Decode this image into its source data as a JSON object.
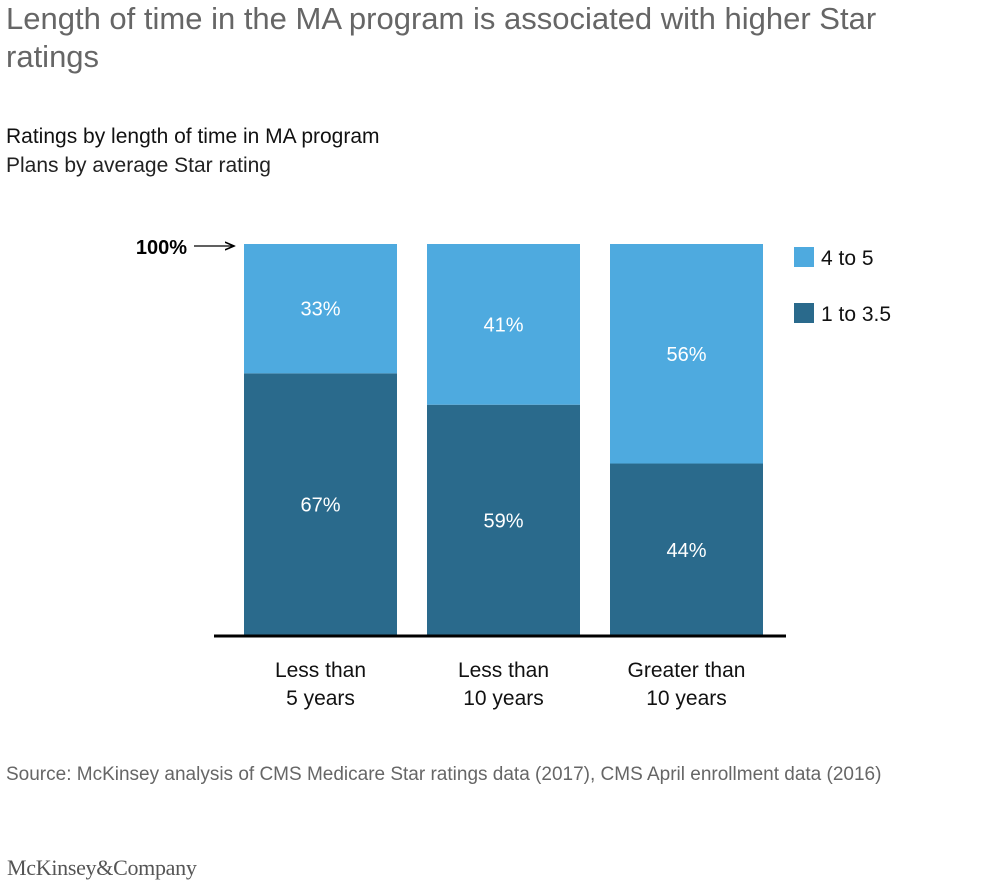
{
  "headline": "Length of time in the MA program is associated with higher Star ratings",
  "chart_data": {
    "type": "bar",
    "stacked": true,
    "title": "Ratings by length of time in MA program",
    "subtitle": "Plans by average Star rating",
    "categories": [
      [
        "Less than",
        "5 years"
      ],
      [
        "Less than",
        "10 years"
      ],
      [
        "Greater than",
        "10 years"
      ]
    ],
    "series": [
      {
        "name": "1 to 3.5",
        "color": "#2a6a8c",
        "values": [
          67,
          59,
          44
        ],
        "labels": [
          "67%",
          "59%",
          "44%"
        ]
      },
      {
        "name": "4 to 5",
        "color": "#4eaadf",
        "values": [
          33,
          41,
          56
        ],
        "labels": [
          "33%",
          "41%",
          "56%"
        ]
      }
    ],
    "ylim": [
      0,
      100
    ],
    "total_marker_label": "100%",
    "legend_position": "right"
  },
  "source": "Source: McKinsey analysis of CMS Medicare Star ratings data (2017), CMS April enrollment data (2016)",
  "logo": "McKinsey&Company"
}
